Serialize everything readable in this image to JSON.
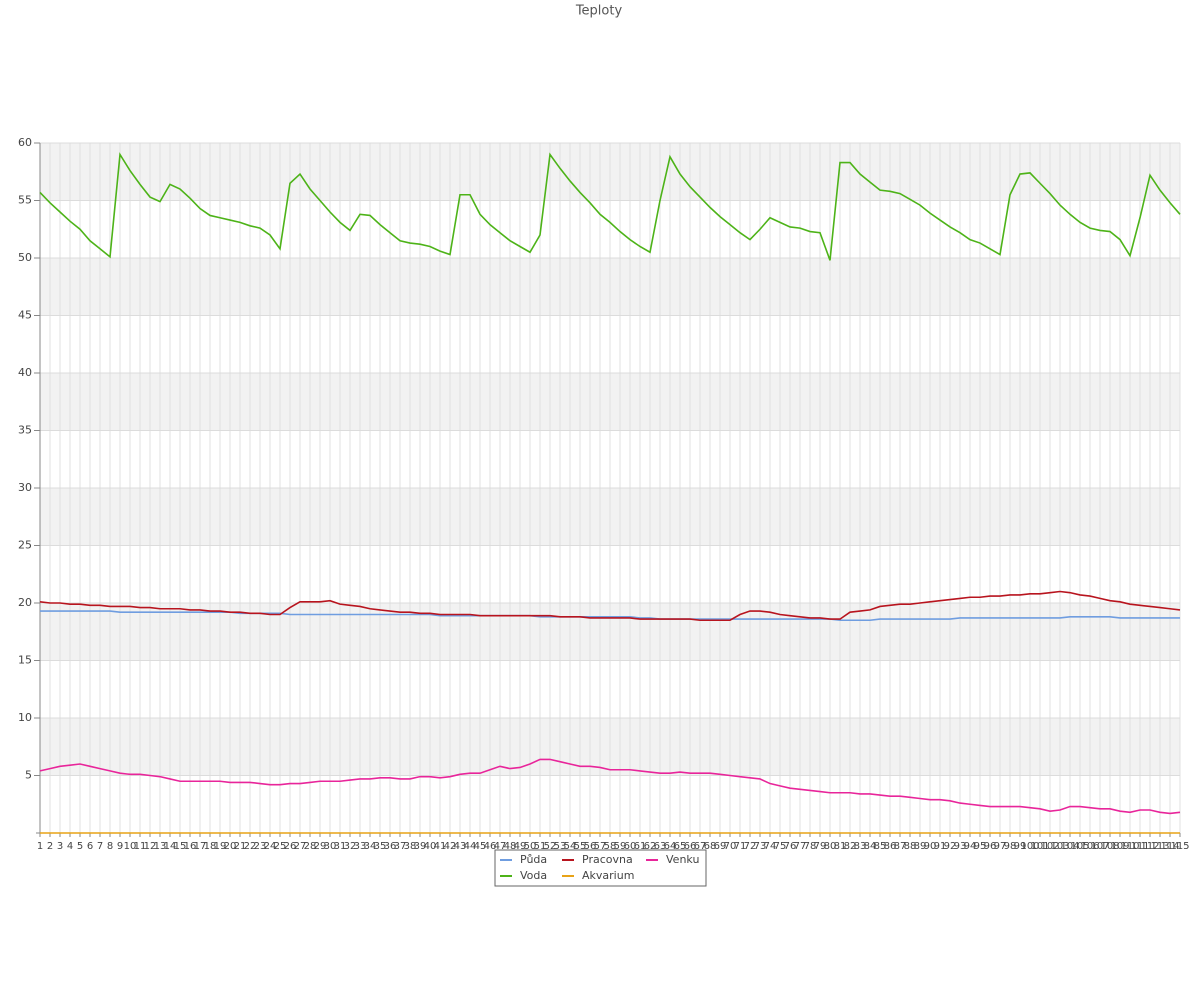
{
  "chart_data": {
    "type": "line",
    "title": "Teploty",
    "x": [
      1,
      2,
      3,
      4,
      5,
      6,
      7,
      8,
      9,
      10,
      11,
      12,
      13,
      14,
      15,
      16,
      17,
      18,
      19,
      20,
      21,
      22,
      23,
      24,
      25,
      26,
      27,
      28,
      29,
      30,
      31,
      32,
      33,
      34,
      35,
      36,
      37,
      38,
      39,
      40,
      41,
      42,
      43,
      44,
      45,
      46,
      47,
      48,
      49,
      50,
      51,
      52,
      53,
      54,
      55,
      56,
      57,
      58,
      59,
      60,
      61,
      62,
      63,
      64,
      65,
      66,
      67,
      68,
      69,
      70,
      71,
      72,
      73,
      74,
      75,
      76,
      77,
      78,
      79,
      80,
      81,
      82,
      83,
      84,
      85,
      86,
      87,
      88,
      89,
      90,
      91,
      92,
      93,
      94,
      95,
      96,
      97,
      98,
      99,
      100,
      101,
      102,
      103,
      104,
      105,
      106,
      107,
      108,
      109,
      110,
      111,
      112,
      113,
      114,
      115
    ],
    "xlim": [
      1,
      115
    ],
    "ylim": [
      0,
      60
    ],
    "yticks": [
      5,
      10,
      15,
      20,
      25,
      30,
      35,
      40,
      45,
      50,
      55,
      60
    ],
    "grid": true,
    "series": [
      {
        "name": "Půda",
        "color": "#6f9de0",
        "values": [
          19.3,
          19.3,
          19.3,
          19.3,
          19.3,
          19.3,
          19.3,
          19.3,
          19.2,
          19.2,
          19.2,
          19.2,
          19.2,
          19.2,
          19.2,
          19.2,
          19.2,
          19.2,
          19.2,
          19.2,
          19.1,
          19.1,
          19.1,
          19.1,
          19.1,
          19.0,
          19.0,
          19.0,
          19.0,
          19.0,
          19.0,
          19.0,
          19.0,
          19.0,
          19.0,
          19.0,
          19.0,
          19.0,
          19.0,
          19.0,
          18.9,
          18.9,
          18.9,
          18.9,
          18.9,
          18.9,
          18.9,
          18.9,
          18.9,
          18.9,
          18.8,
          18.8,
          18.8,
          18.8,
          18.8,
          18.8,
          18.8,
          18.8,
          18.8,
          18.8,
          18.7,
          18.7,
          18.6,
          18.6,
          18.6,
          18.6,
          18.6,
          18.6,
          18.6,
          18.6,
          18.6,
          18.6,
          18.6,
          18.6,
          18.6,
          18.6,
          18.6,
          18.6,
          18.6,
          18.6,
          18.5,
          18.5,
          18.5,
          18.5,
          18.6,
          18.6,
          18.6,
          18.6,
          18.6,
          18.6,
          18.6,
          18.6,
          18.7,
          18.7,
          18.7,
          18.7,
          18.7,
          18.7,
          18.7,
          18.7,
          18.7,
          18.7,
          18.7,
          18.8,
          18.8,
          18.8,
          18.8,
          18.8,
          18.7,
          18.7,
          18.7,
          18.7,
          18.7,
          18.7,
          18.7
        ]
      },
      {
        "name": "Pracovna",
        "color": "#b8141e",
        "values": [
          20.1,
          20.0,
          20.0,
          19.9,
          19.9,
          19.8,
          19.8,
          19.7,
          19.7,
          19.7,
          19.6,
          19.6,
          19.5,
          19.5,
          19.5,
          19.4,
          19.4,
          19.3,
          19.3,
          19.2,
          19.2,
          19.1,
          19.1,
          19.0,
          19.0,
          19.6,
          20.1,
          20.1,
          20.1,
          20.2,
          19.9,
          19.8,
          19.7,
          19.5,
          19.4,
          19.3,
          19.2,
          19.2,
          19.1,
          19.1,
          19.0,
          19.0,
          19.0,
          19.0,
          18.9,
          18.9,
          18.9,
          18.9,
          18.9,
          18.9,
          18.9,
          18.9,
          18.8,
          18.8,
          18.8,
          18.7,
          18.7,
          18.7,
          18.7,
          18.7,
          18.6,
          18.6,
          18.6,
          18.6,
          18.6,
          18.6,
          18.5,
          18.5,
          18.5,
          18.5,
          19.0,
          19.3,
          19.3,
          19.2,
          19.0,
          18.9,
          18.8,
          18.7,
          18.7,
          18.6,
          18.6,
          19.2,
          19.3,
          19.4,
          19.7,
          19.8,
          19.9,
          19.9,
          20.0,
          20.1,
          20.2,
          20.3,
          20.4,
          20.5,
          20.5,
          20.6,
          20.6,
          20.7,
          20.7,
          20.8,
          20.8,
          20.9,
          21.0,
          20.9,
          20.7,
          20.6,
          20.4,
          20.2,
          20.1,
          19.9,
          19.8,
          19.7,
          19.6,
          19.5,
          19.4
        ]
      },
      {
        "name": "Venku",
        "color": "#e8259a",
        "values": [
          5.4,
          5.6,
          5.8,
          5.9,
          6.0,
          5.8,
          5.6,
          5.4,
          5.2,
          5.1,
          5.1,
          5.0,
          4.9,
          4.7,
          4.5,
          4.5,
          4.5,
          4.5,
          4.5,
          4.4,
          4.4,
          4.4,
          4.3,
          4.2,
          4.2,
          4.3,
          4.3,
          4.4,
          4.5,
          4.5,
          4.5,
          4.6,
          4.7,
          4.7,
          4.8,
          4.8,
          4.7,
          4.7,
          4.9,
          4.9,
          4.8,
          4.9,
          5.1,
          5.2,
          5.2,
          5.5,
          5.8,
          5.6,
          5.7,
          6.0,
          6.4,
          6.4,
          6.2,
          6.0,
          5.8,
          5.8,
          5.7,
          5.5,
          5.5,
          5.5,
          5.4,
          5.3,
          5.2,
          5.2,
          5.3,
          5.2,
          5.2,
          5.2,
          5.1,
          5.0,
          4.9,
          4.8,
          4.7,
          4.3,
          4.1,
          3.9,
          3.8,
          3.7,
          3.6,
          3.5,
          3.5,
          3.5,
          3.4,
          3.4,
          3.3,
          3.2,
          3.2,
          3.1,
          3.0,
          2.9,
          2.9,
          2.8,
          2.6,
          2.5,
          2.4,
          2.3,
          2.3,
          2.3,
          2.3,
          2.2,
          2.1,
          1.9,
          2.0,
          2.3,
          2.3,
          2.2,
          2.1,
          2.1,
          1.9,
          1.8,
          2.0,
          2.0,
          1.8,
          1.7,
          1.8
        ]
      },
      {
        "name": "Voda",
        "color": "#4db318",
        "values": [
          55.7,
          54.8,
          54.0,
          53.2,
          52.5,
          51.5,
          50.8,
          50.1,
          59.0,
          57.6,
          56.4,
          55.3,
          54.9,
          56.4,
          56.0,
          55.2,
          54.3,
          53.7,
          53.5,
          53.3,
          53.1,
          52.8,
          52.6,
          52.0,
          50.8,
          56.5,
          57.3,
          56.0,
          55.0,
          54.0,
          53.1,
          52.4,
          53.8,
          53.7,
          52.9,
          52.2,
          51.5,
          51.3,
          51.2,
          51.0,
          50.6,
          50.3,
          55.5,
          55.5,
          53.8,
          52.9,
          52.2,
          51.5,
          51.0,
          50.5,
          52.0,
          59.0,
          57.8,
          56.7,
          55.7,
          54.8,
          53.8,
          53.1,
          52.3,
          51.6,
          51.0,
          50.5,
          55.0,
          58.8,
          57.3,
          56.2,
          55.3,
          54.4,
          53.6,
          52.9,
          52.2,
          51.6,
          52.5,
          53.5,
          53.1,
          52.7,
          52.6,
          52.3,
          52.2,
          49.8,
          58.3,
          58.3,
          57.3,
          56.6,
          55.9,
          55.8,
          55.6,
          55.1,
          54.6,
          53.9,
          53.3,
          52.7,
          52.2,
          51.6,
          51.3,
          50.8,
          50.3,
          55.5,
          57.3,
          57.4,
          56.5,
          55.6,
          54.6,
          53.8,
          53.1,
          52.6,
          52.4,
          52.3,
          51.6,
          50.2,
          53.5,
          57.2,
          55.9,
          54.8,
          53.8
        ]
      },
      {
        "name": "Akvarium",
        "color": "#e8a317",
        "values": [
          0,
          0,
          0,
          0,
          0,
          0,
          0,
          0,
          0,
          0,
          0,
          0,
          0,
          0,
          0,
          0,
          0,
          0,
          0,
          0,
          0,
          0,
          0,
          0,
          0,
          0,
          0,
          0,
          0,
          0,
          0,
          0,
          0,
          0,
          0,
          0,
          0,
          0,
          0,
          0,
          0,
          0,
          0,
          0,
          0,
          0,
          0,
          0,
          0,
          0,
          0,
          0,
          0,
          0,
          0,
          0,
          0,
          0,
          0,
          0,
          0,
          0,
          0,
          0,
          0,
          0,
          0,
          0,
          0,
          0,
          0,
          0,
          0,
          0,
          0,
          0,
          0,
          0,
          0,
          0,
          0,
          0,
          0,
          0,
          0,
          0,
          0,
          0,
          0,
          0,
          0,
          0,
          0,
          0,
          0,
          0,
          0,
          0,
          0,
          0,
          0,
          0,
          0,
          0,
          0,
          0,
          0,
          0,
          0,
          0,
          0,
          0,
          0,
          0,
          0
        ]
      }
    ]
  }
}
